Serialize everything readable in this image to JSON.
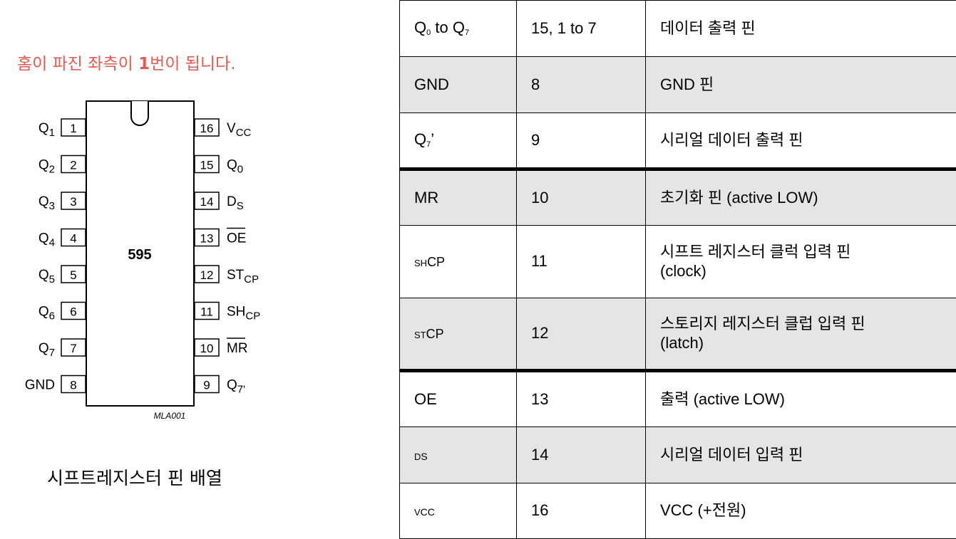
{
  "note": {
    "prefix": "홈이 파진 좌측이 ",
    "num": "1",
    "suffix": "번이 됩니다."
  },
  "caption": "시프트레지스터 핀 배열",
  "chip": {
    "label": "595",
    "code": "MLA001",
    "left_pins": [
      {
        "num": "1",
        "name": "Q",
        "sub": "1"
      },
      {
        "num": "2",
        "name": "Q",
        "sub": "2"
      },
      {
        "num": "3",
        "name": "Q",
        "sub": "3"
      },
      {
        "num": "4",
        "name": "Q",
        "sub": "4"
      },
      {
        "num": "5",
        "name": "Q",
        "sub": "5"
      },
      {
        "num": "6",
        "name": "Q",
        "sub": "6"
      },
      {
        "num": "7",
        "name": "Q",
        "sub": "7"
      },
      {
        "num": "8",
        "name": "GND",
        "sub": ""
      }
    ],
    "right_pins": [
      {
        "num": "16",
        "name": "V",
        "sub": "CC",
        "bar": false
      },
      {
        "num": "15",
        "name": "Q",
        "sub": "0",
        "bar": false
      },
      {
        "num": "14",
        "name": "D",
        "sub": "S",
        "bar": false
      },
      {
        "num": "13",
        "name": "OE",
        "sub": "",
        "bar": true
      },
      {
        "num": "12",
        "name": "ST",
        "sub": "CP",
        "bar": false
      },
      {
        "num": "11",
        "name": "SH",
        "sub": "CP",
        "bar": false
      },
      {
        "num": "10",
        "name": "MR",
        "sub": "",
        "bar": true
      },
      {
        "num": "9",
        "name": "Q",
        "sub": "7'",
        "bar": false
      }
    ]
  },
  "table": {
    "rows": [
      {
        "pin_a": "Q",
        "pin_a_sub": "0",
        "pin_b": " to Q",
        "pin_b_sub": "7",
        "num": "15, 1 to 7",
        "desc": "데이터 출력 핀"
      },
      {
        "pin_a": "GND",
        "num": "8",
        "desc": "GND 핀"
      },
      {
        "pin_a": "Q",
        "pin_a_sub": "7",
        "pin_b": "’",
        "num": "9",
        "desc": "시리얼 데이터 출력 핀"
      },
      {
        "pin_a": "MR",
        "num": "10",
        "desc": "초기화 핀 (active LOW)"
      },
      {
        "pin_a": "SH",
        "pin_b": "CP",
        "num": "11",
        "desc": "시프트 레지스터 클럭 입력 핀",
        "desc2": "(clock)"
      },
      {
        "pin_a": "ST",
        "pin_b": "CP",
        "num": "12",
        "desc": "스토리지 레지스터 클럽 입력 핀",
        "desc2": "(latch)"
      },
      {
        "pin_a": "OE",
        "num": "13",
        "desc": "출력 (active LOW)"
      },
      {
        "pin_a": "D",
        "pin_b": "S",
        "num": "14",
        "desc": "시리얼 데이터 입력 핀"
      },
      {
        "pin_a": "V",
        "pin_b": "CC",
        "num": "16",
        "desc": "VCC (+전원)"
      }
    ]
  }
}
